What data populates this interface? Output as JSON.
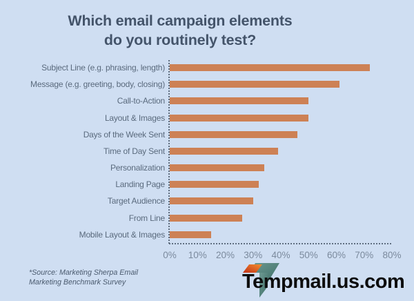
{
  "page": {
    "background": "#cfdef2"
  },
  "title": {
    "line1": "Which email campaign elements",
    "line2": "do you routinely test?",
    "color": "#44546a"
  },
  "chart_data": {
    "type": "bar",
    "orientation": "horizontal",
    "title": "Which email campaign elements do you routinely test?",
    "categories": [
      "Subject Line (e.g. phrasing, length)",
      "Message (e.g. greeting, body, closing)",
      "Call-to-Action",
      "Layout & Images",
      "Days of the Week Sent",
      "Time of Day Sent",
      "Personalization",
      "Landing Page",
      "Target Audience",
      "From Line",
      "Mobile Layout & Images"
    ],
    "values": [
      72,
      61,
      50,
      50,
      46,
      39,
      34,
      32,
      30,
      26,
      15
    ],
    "unit": "%",
    "xlabel": "",
    "ylabel": "",
    "xlim": [
      0,
      80
    ],
    "x_ticks": [
      "0%",
      "10%",
      "20%",
      "30%",
      "40%",
      "50%",
      "60%",
      "70%",
      "80%"
    ],
    "bar_color": "#cd8155",
    "grid": "off",
    "axis_style": "dotted",
    "legend_position": "none"
  },
  "source_note": {
    "line1": "*Source: Marketing Sherpa Email",
    "line2": "Marketing Benchmark Survey"
  },
  "logo": {
    "text": "Tempmail.us.com",
    "icon": "tempmail-t-logo",
    "icon_orange_dark": "#c03018",
    "icon_orange_light": "#f5902f",
    "icon_teal_dark": "#3f6f68",
    "icon_teal_light": "#6d9a92",
    "text_color": "#0d0d0d"
  }
}
